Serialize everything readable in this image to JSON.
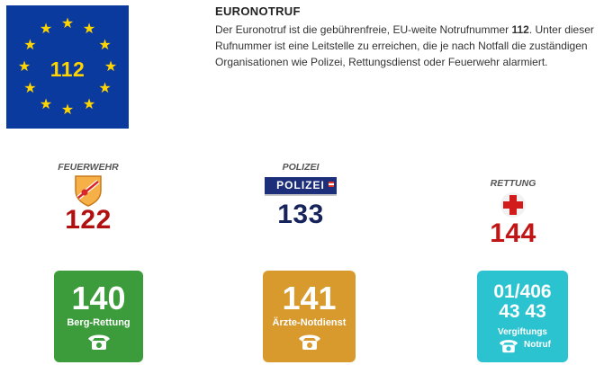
{
  "flag": {
    "number": "112",
    "icon": "eu-flag-icon",
    "star_color": "#ffd400",
    "bg_color": "#0b3a9f"
  },
  "intro": {
    "title": "EURONOTRUF",
    "text_before": "Der Euronotruf ist die gebührenfreie, EU-weite Notrufnummer ",
    "text_bold": "112",
    "text_after": ". Unter dieser Rufnummer ist eine Leitstelle zu erreichen, die je nach Notfall die zuständigen Organisationen wie Polizei, Rettungsdienst oder Feuerwehr alarmiert."
  },
  "organizations": [
    {
      "label": "FEUERWEHR",
      "number": "122",
      "icon": "fire-brigade-shield-icon",
      "color": "#b01010"
    },
    {
      "label": "POLIZEI",
      "badge_text": "POLIZEI",
      "number": "133",
      "icon": "police-badge-icon",
      "color": "#17245c"
    },
    {
      "label": "RETTUNG",
      "number": "144",
      "icon": "red-cross-icon",
      "color": "#c21515"
    }
  ],
  "tiles": [
    {
      "number": "140",
      "name": "Berg-Rettung",
      "icon": "telephone-icon",
      "color": "#3c9c3c"
    },
    {
      "number": "141",
      "name": "Ärzte-Notdienst",
      "icon": "telephone-icon",
      "color": "#d89a2c"
    },
    {
      "number_line1": "01/406",
      "number_line2": "43 43",
      "name_line1": "Vergiftungs",
      "name_line2": "Notruf",
      "icon": "telephone-icon",
      "color": "#2bc3cf"
    }
  ]
}
